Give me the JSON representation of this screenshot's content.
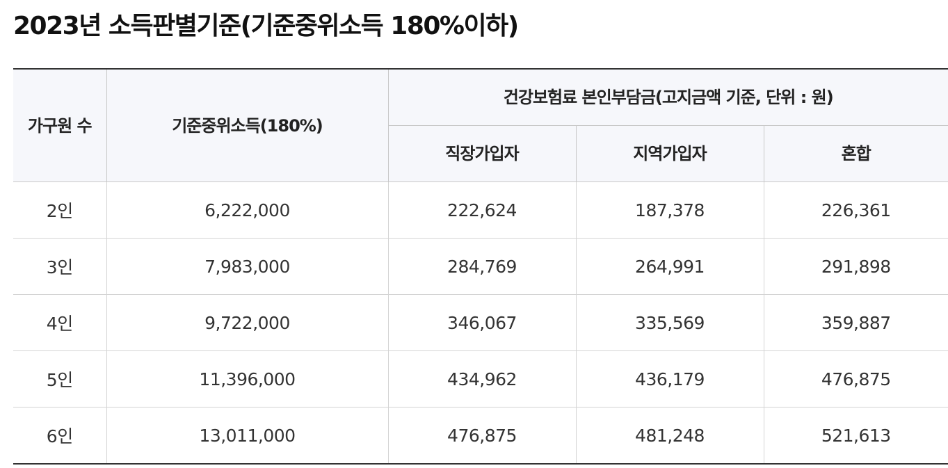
{
  "title": "2023년 소득판별기준(기준중위소득 180%이하)",
  "table": {
    "headers": {
      "household": "가구원 수",
      "median_income": "기준중위소득(180%)",
      "premium_group": "건강보험료 본인부담금(고지금액 기준, 단위 : 원)",
      "employee": "직장가입자",
      "regional": "지역가입자",
      "mixed": "혼합"
    },
    "rows": [
      {
        "household": "2인",
        "median_income": "6,222,000",
        "employee": "222,624",
        "regional": "187,378",
        "mixed": "226,361"
      },
      {
        "household": "3인",
        "median_income": "7,983,000",
        "employee": "284,769",
        "regional": "264,991",
        "mixed": "291,898"
      },
      {
        "household": "4인",
        "median_income": "9,722,000",
        "employee": "346,067",
        "regional": "335,569",
        "mixed": "359,887"
      },
      {
        "household": "5인",
        "median_income": "11,396,000",
        "employee": "434,962",
        "regional": "436,179",
        "mixed": "476,875"
      },
      {
        "household": "6인",
        "median_income": "13,011,000",
        "employee": "476,875",
        "regional": "481,248",
        "mixed": "521,613"
      }
    ]
  }
}
